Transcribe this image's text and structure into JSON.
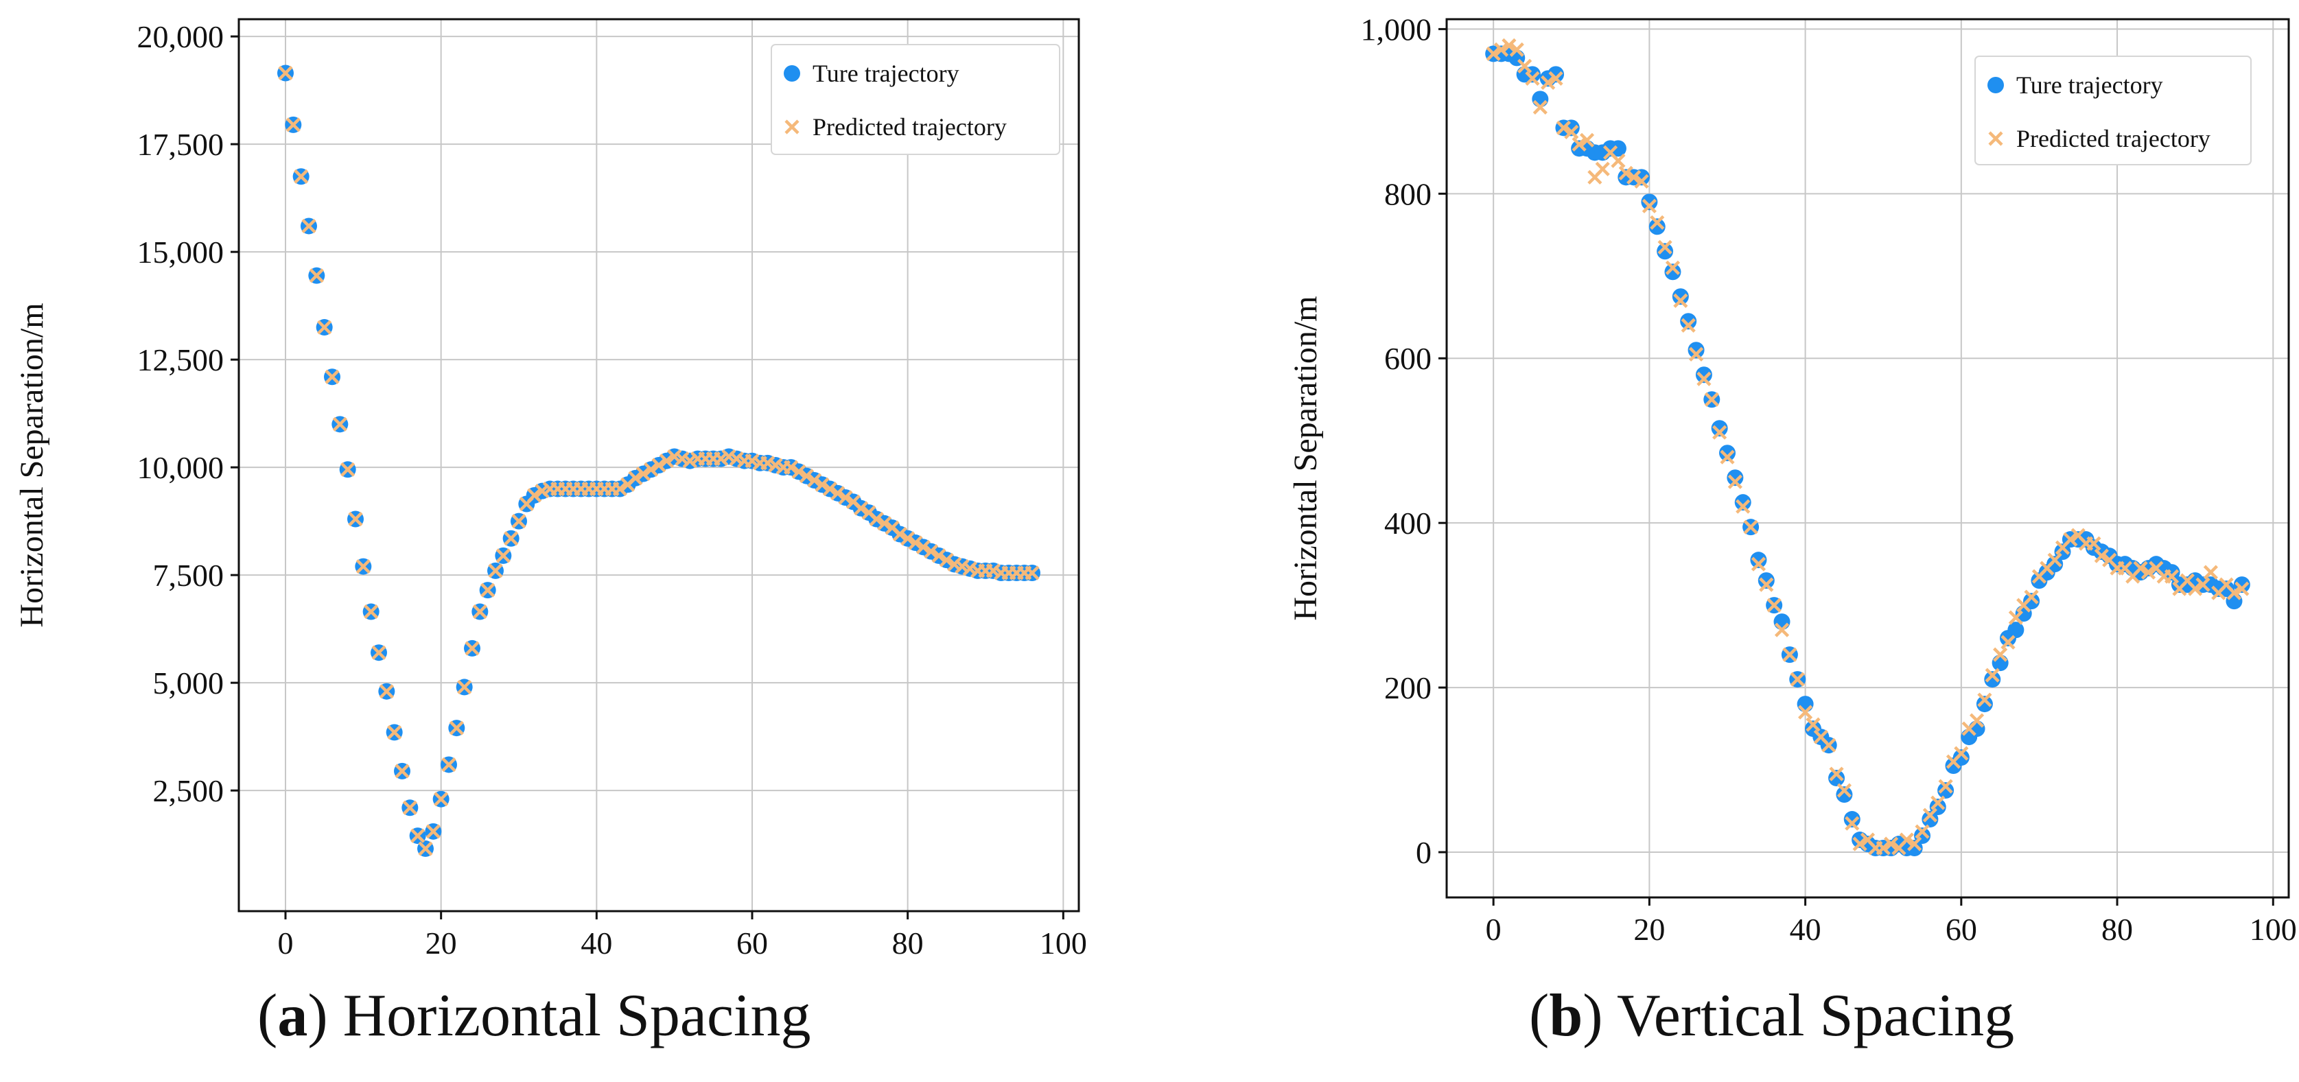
{
  "chart_data": [
    {
      "type": "scatter",
      "title": "",
      "caption_letter": "a",
      "caption_text": ") Horizontal Spacing",
      "xlabel": "",
      "ylabel": "Horizontal Separation/m",
      "xlim": [
        -6,
        102
      ],
      "ylim": [
        -300,
        20400
      ],
      "xticks": [
        0,
        20,
        40,
        60,
        80,
        100
      ],
      "yticks": [
        2500,
        5000,
        7500,
        10000,
        12500,
        15000,
        17500,
        20000
      ],
      "ytick_labels": [
        "2,500",
        "5,000",
        "7,500",
        "10,000",
        "12,500",
        "15,000",
        "17,500",
        "20,000"
      ],
      "grid": true,
      "legend_position": "top-right",
      "series": [
        {
          "name": "Ture trajectory",
          "marker": "circle",
          "color": "#1f8ff0",
          "x": [
            0,
            1,
            2,
            3,
            4,
            5,
            6,
            7,
            8,
            9,
            10,
            11,
            12,
            13,
            14,
            15,
            16,
            17,
            18,
            19,
            20,
            21,
            22,
            23,
            24,
            25,
            26,
            27,
            28,
            29,
            30,
            31,
            32,
            33,
            34,
            35,
            36,
            37,
            38,
            39,
            40,
            41,
            42,
            43,
            44,
            45,
            46,
            47,
            48,
            49,
            50,
            51,
            52,
            53,
            54,
            55,
            56,
            57,
            58,
            59,
            60,
            61,
            62,
            63,
            64,
            65,
            66,
            67,
            68,
            69,
            70,
            71,
            72,
            73,
            74,
            75,
            76,
            77,
            78,
            79,
            80,
            81,
            82,
            83,
            84,
            85,
            86,
            87,
            88,
            89,
            90,
            91,
            92,
            93,
            94,
            95,
            96
          ],
          "y": [
            19150,
            17950,
            16750,
            15600,
            14450,
            13250,
            12100,
            11000,
            9950,
            8800,
            7700,
            6650,
            5700,
            4800,
            3850,
            2950,
            2100,
            1450,
            1150,
            1550,
            2300,
            3100,
            3950,
            4900,
            5800,
            6650,
            7150,
            7600,
            7950,
            8350,
            8750,
            9150,
            9350,
            9450,
            9500,
            9500,
            9500,
            9500,
            9500,
            9500,
            9500,
            9500,
            9500,
            9500,
            9600,
            9750,
            9850,
            9950,
            10050,
            10150,
            10250,
            10200,
            10150,
            10200,
            10200,
            10200,
            10200,
            10250,
            10200,
            10150,
            10150,
            10100,
            10100,
            10050,
            10000,
            10000,
            9900,
            9800,
            9700,
            9600,
            9500,
            9400,
            9300,
            9200,
            9050,
            8950,
            8800,
            8700,
            8600,
            8450,
            8350,
            8250,
            8150,
            8050,
            7950,
            7850,
            7750,
            7700,
            7650,
            7600,
            7600,
            7600,
            7550,
            7550,
            7550,
            7550,
            7550
          ]
        },
        {
          "name": "Predicted trajectory",
          "marker": "x",
          "color": "#f5b97a",
          "x": [
            0,
            1,
            2,
            3,
            4,
            5,
            6,
            7,
            8,
            9,
            10,
            11,
            12,
            13,
            14,
            15,
            16,
            17,
            18,
            19,
            20,
            21,
            22,
            23,
            24,
            25,
            26,
            27,
            28,
            29,
            30,
            31,
            32,
            33,
            34,
            35,
            36,
            37,
            38,
            39,
            40,
            41,
            42,
            43,
            44,
            45,
            46,
            47,
            48,
            49,
            50,
            51,
            52,
            53,
            54,
            55,
            56,
            57,
            58,
            59,
            60,
            61,
            62,
            63,
            64,
            65,
            66,
            67,
            68,
            69,
            70,
            71,
            72,
            73,
            74,
            75,
            76,
            77,
            78,
            79,
            80,
            81,
            82,
            83,
            84,
            85,
            86,
            87,
            88,
            89,
            90,
            91,
            92,
            93,
            94,
            95,
            96
          ],
          "y": [
            19150,
            17950,
            16750,
            15600,
            14450,
            13250,
            12100,
            11000,
            9950,
            8800,
            7700,
            6650,
            5700,
            4800,
            3850,
            2950,
            2100,
            1450,
            1150,
            1550,
            2300,
            3100,
            3950,
            4900,
            5800,
            6650,
            7150,
            7600,
            7950,
            8350,
            8750,
            9150,
            9350,
            9450,
            9500,
            9500,
            9500,
            9500,
            9500,
            9500,
            9500,
            9500,
            9500,
            9500,
            9600,
            9750,
            9850,
            9950,
            10050,
            10150,
            10250,
            10200,
            10150,
            10200,
            10200,
            10200,
            10200,
            10250,
            10200,
            10150,
            10150,
            10100,
            10100,
            10050,
            10000,
            10000,
            9900,
            9800,
            9700,
            9600,
            9500,
            9400,
            9300,
            9200,
            9050,
            8950,
            8800,
            8700,
            8600,
            8450,
            8350,
            8250,
            8150,
            8050,
            7950,
            7850,
            7750,
            7700,
            7650,
            7600,
            7600,
            7600,
            7550,
            7550,
            7550,
            7550,
            7550
          ]
        }
      ]
    },
    {
      "type": "scatter",
      "title": "",
      "caption_letter": "b",
      "caption_text": ") Vertical Spacing",
      "xlabel": "",
      "ylabel": "Horizontal Separation/m",
      "xlim": [
        -6,
        102
      ],
      "ylim": [
        -55,
        1012
      ],
      "xticks": [
        0,
        20,
        40,
        60,
        80,
        100
      ],
      "yticks": [
        0,
        200,
        400,
        600,
        800,
        1000
      ],
      "ytick_labels": [
        "0",
        "200",
        "400",
        "600",
        "800",
        "1,000"
      ],
      "grid": true,
      "legend_position": "top-right",
      "series": [
        {
          "name": "Ture trajectory",
          "marker": "circle",
          "color": "#1f8ff0",
          "x": [
            0,
            1,
            2,
            3,
            4,
            5,
            6,
            7,
            8,
            9,
            10,
            11,
            12,
            13,
            14,
            15,
            16,
            17,
            18,
            19,
            20,
            21,
            22,
            23,
            24,
            25,
            26,
            27,
            28,
            29,
            30,
            31,
            32,
            33,
            34,
            35,
            36,
            37,
            38,
            39,
            40,
            41,
            42,
            43,
            44,
            45,
            46,
            47,
            48,
            49,
            50,
            51,
            52,
            53,
            54,
            55,
            56,
            57,
            58,
            59,
            60,
            61,
            62,
            63,
            64,
            65,
            66,
            67,
            68,
            69,
            70,
            71,
            72,
            73,
            74,
            75,
            76,
            77,
            78,
            79,
            80,
            81,
            82,
            83,
            84,
            85,
            86,
            87,
            88,
            89,
            90,
            91,
            92,
            93,
            94,
            95,
            96
          ],
          "y": [
            970,
            970,
            970,
            965,
            945,
            945,
            915,
            940,
            945,
            880,
            880,
            855,
            855,
            850,
            850,
            855,
            855,
            820,
            820,
            820,
            790,
            760,
            730,
            705,
            675,
            645,
            610,
            580,
            550,
            515,
            485,
            455,
            425,
            395,
            355,
            330,
            300,
            280,
            240,
            210,
            180,
            150,
            140,
            130,
            90,
            70,
            40,
            15,
            10,
            5,
            5,
            5,
            10,
            5,
            5,
            20,
            40,
            55,
            75,
            105,
            115,
            140,
            150,
            180,
            210,
            230,
            260,
            270,
            290,
            305,
            330,
            340,
            350,
            365,
            380,
            380,
            380,
            370,
            365,
            360,
            350,
            350,
            345,
            340,
            345,
            350,
            345,
            340,
            325,
            325,
            330,
            325,
            325,
            320,
            320,
            305,
            325
          ]
        },
        {
          "name": "Predicted trajectory",
          "marker": "x",
          "color": "#f5b97a",
          "x": [
            0,
            1,
            2,
            3,
            4,
            5,
            6,
            7,
            8,
            9,
            10,
            11,
            12,
            13,
            14,
            15,
            16,
            17,
            18,
            19,
            20,
            21,
            22,
            23,
            24,
            25,
            26,
            27,
            28,
            29,
            30,
            31,
            32,
            33,
            34,
            35,
            36,
            37,
            38,
            39,
            40,
            41,
            42,
            43,
            44,
            45,
            46,
            47,
            48,
            49,
            50,
            51,
            52,
            53,
            54,
            55,
            56,
            57,
            58,
            59,
            60,
            61,
            62,
            63,
            64,
            65,
            66,
            67,
            68,
            69,
            70,
            71,
            72,
            73,
            74,
            75,
            76,
            77,
            78,
            79,
            80,
            81,
            82,
            83,
            84,
            85,
            86,
            87,
            88,
            89,
            90,
            91,
            92,
            93,
            94,
            95,
            96
          ],
          "y": [
            970,
            975,
            980,
            975,
            955,
            940,
            905,
            935,
            940,
            880,
            875,
            860,
            865,
            820,
            830,
            850,
            840,
            825,
            820,
            815,
            785,
            765,
            735,
            710,
            670,
            640,
            605,
            575,
            550,
            510,
            480,
            450,
            420,
            395,
            350,
            325,
            300,
            270,
            240,
            210,
            170,
            155,
            140,
            130,
            95,
            75,
            35,
            10,
            15,
            5,
            5,
            10,
            5,
            15,
            10,
            25,
            45,
            60,
            80,
            110,
            120,
            150,
            160,
            185,
            215,
            240,
            255,
            285,
            300,
            310,
            335,
            345,
            355,
            370,
            380,
            385,
            375,
            375,
            360,
            355,
            345,
            345,
            335,
            345,
            340,
            345,
            335,
            335,
            320,
            330,
            320,
            325,
            340,
            315,
            325,
            315,
            320
          ]
        }
      ]
    }
  ]
}
